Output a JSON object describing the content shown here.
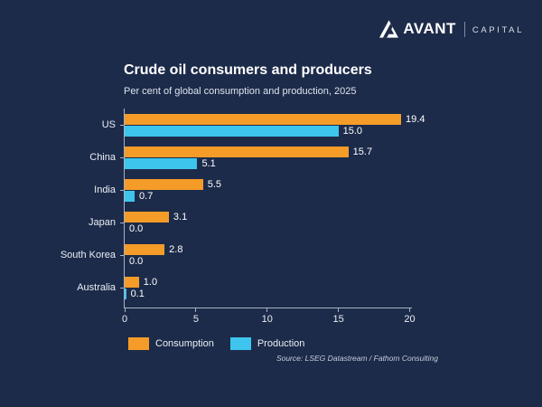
{
  "brand": {
    "name": "AVANT",
    "division": "CAPITAL"
  },
  "header": {
    "title": "Crude oil consumers and producers",
    "subtitle": "Per cent of global consumption and production, 2025"
  },
  "chart_data": {
    "type": "bar",
    "orientation": "horizontal",
    "title": "Crude oil consumers and producers",
    "subtitle": "Per cent of global consumption and production, 2025",
    "categories": [
      "US",
      "China",
      "India",
      "Japan",
      "South Korea",
      "Australia"
    ],
    "series": [
      {
        "name": "Consumption",
        "color": "#F59C28",
        "values": [
          19.4,
          15.7,
          5.5,
          3.1,
          2.8,
          1.0
        ]
      },
      {
        "name": "Production",
        "color": "#3DC5EE",
        "values": [
          15.0,
          5.1,
          0.7,
          0.0,
          0.0,
          0.1
        ]
      }
    ],
    "xlim": [
      0,
      20
    ],
    "xticks": [
      0,
      5,
      10,
      15,
      20
    ],
    "value_labels": true,
    "grid": false,
    "legend_position": "bottom-left",
    "source": "Source: LSEG Datastream / Fathom Consulting"
  },
  "source_note": "Source: LSEG Datastream / Fathom Consulting",
  "colors": {
    "background": "#1D2B4A",
    "consumption": "#F59C28",
    "production": "#3DC5EE",
    "axis": "#A6B2C5",
    "title_text": "#FFFFFF",
    "subtitle_text": "#DDE4EE",
    "source_text": "#C6CEDB"
  }
}
